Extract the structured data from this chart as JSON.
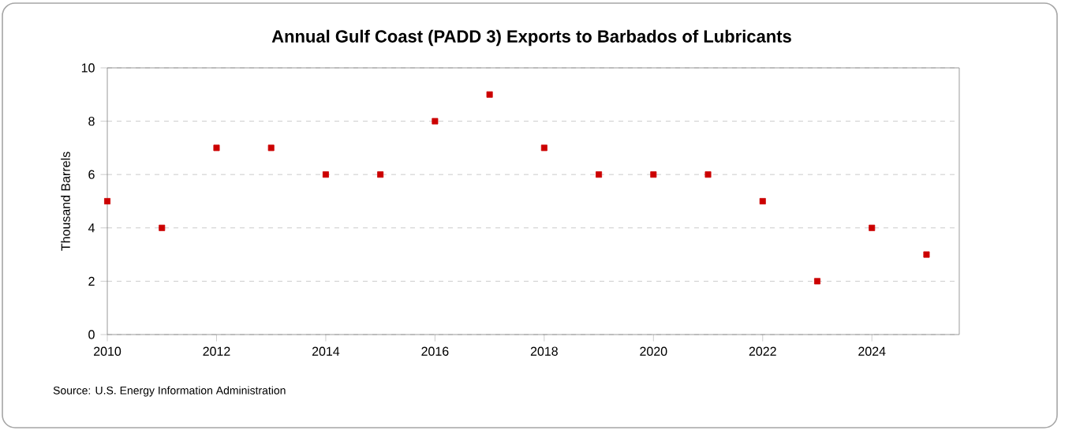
{
  "chart_data": {
    "type": "scatter",
    "title": "Annual Gulf Coast (PADD 3) Exports to Barbados of Lubricants",
    "ylabel": "Thousand Barrels",
    "x": [
      2010,
      2011,
      2012,
      2013,
      2014,
      2015,
      2016,
      2017,
      2018,
      2019,
      2020,
      2021,
      2022,
      2023,
      2024,
      2025
    ],
    "series": [
      {
        "color": "#cc0000",
        "values": [
          5,
          4,
          7,
          7,
          6,
          6,
          8,
          9,
          7,
          6,
          6,
          6,
          5,
          2,
          4,
          3
        ]
      }
    ],
    "xlim": [
      2010,
      2025.6
    ],
    "xticks": [
      2010,
      2012,
      2014,
      2016,
      2018,
      2020,
      2022,
      2024
    ],
    "ylim": [
      0,
      10
    ],
    "yticks": [
      0,
      2,
      4,
      6,
      8,
      10
    ],
    "grid": "y",
    "marker": "square",
    "annotations": [
      "Source: U.S. Energy Information Administration"
    ]
  }
}
